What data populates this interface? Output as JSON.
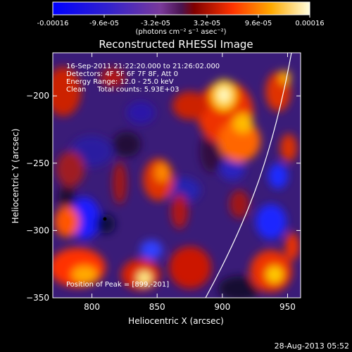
{
  "colorbar": {
    "tick_labels": [
      "-0.00016",
      "-9.6e-05",
      "-3.2e-05",
      "3.2e-05",
      "9.6e-05",
      "0.00016"
    ],
    "unit_label": "(photons cm⁻² s⁻¹ asec⁻²)",
    "range": [
      -0.00016,
      0.00016
    ]
  },
  "plot": {
    "title": "Reconstructed RHESSI Image",
    "xlabel": "Heliocentric X (arcsec)",
    "ylabel": "Heliocentric Y (arcsec)",
    "xlim": [
      770,
      960
    ],
    "ylim": [
      -350,
      -168
    ],
    "x_ticks": [
      {
        "value": 800,
        "label": "800"
      },
      {
        "value": 850,
        "label": "850"
      },
      {
        "value": 900,
        "label": "900"
      },
      {
        "value": 950,
        "label": "950"
      }
    ],
    "y_ticks": [
      {
        "value": -200,
        "label": "−200"
      },
      {
        "value": -250,
        "label": "−250"
      },
      {
        "value": -300,
        "label": "−300"
      },
      {
        "value": -350,
        "label": "−350"
      }
    ],
    "info_lines": [
      "16-Sep-2011 21:22:20.000 to 21:26:02.000",
      "Detectors: 4F 5F 6F 7F 8F, Att 0",
      "Energy Range: 12.0 - 25.0 keV",
      "Clean     Total counts: 5.93E+03"
    ],
    "peak_label": "Position of Peak = [899,-201]",
    "peak_position": [
      899,
      -201
    ]
  },
  "footer": {
    "timestamp": "28-Aug-2013 05:52"
  }
}
